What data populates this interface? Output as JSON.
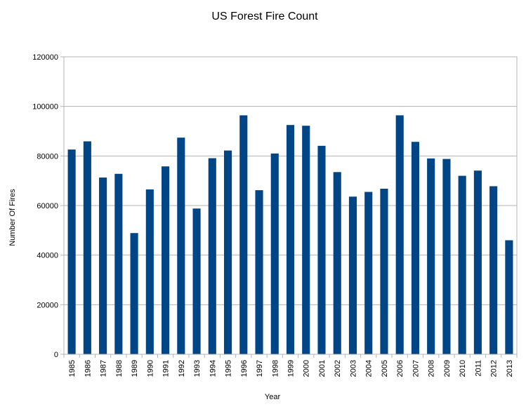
{
  "chart_data": {
    "type": "bar",
    "title": "US Forest Fire Count",
    "xlabel": "Year",
    "ylabel": "Number Of Fires",
    "ylim": [
      0,
      120000
    ],
    "yticks": [
      0,
      20000,
      40000,
      60000,
      80000,
      100000,
      120000
    ],
    "grid": true,
    "bar_color": "#004586",
    "categories": [
      "1985",
      "1986",
      "1987",
      "1988",
      "1989",
      "1990",
      "1991",
      "1992",
      "1993",
      "1994",
      "1995",
      "1996",
      "1997",
      "1998",
      "1999",
      "2000",
      "2001",
      "2002",
      "2003",
      "2004",
      "2005",
      "2006",
      "2007",
      "2008",
      "2009",
      "2010",
      "2011",
      "2012",
      "2013"
    ],
    "values": [
      82600,
      85900,
      71300,
      72800,
      48900,
      66500,
      75800,
      87400,
      58800,
      79100,
      82200,
      96400,
      66200,
      81000,
      92500,
      92200,
      84100,
      73500,
      63600,
      65500,
      66800,
      96400,
      85700,
      79000,
      78800,
      72000,
      74100,
      67800,
      46000
    ]
  }
}
